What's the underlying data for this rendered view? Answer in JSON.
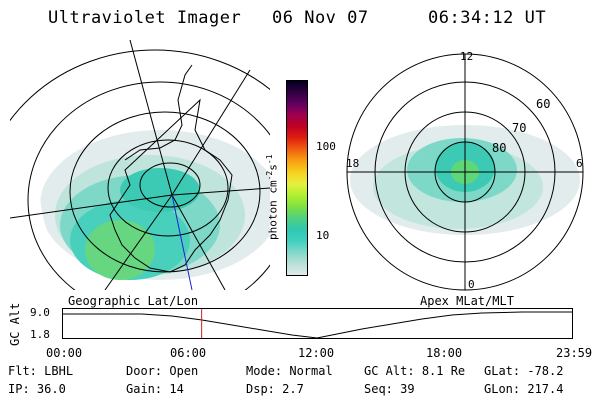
{
  "header": {
    "instrument": "Ultraviolet Imager",
    "date": "06 Nov 07",
    "time": "06:34:12 UT"
  },
  "left_panel": {
    "label": "Geographic Lat/Lon"
  },
  "right_panel": {
    "label": "Apex MLat/MLT",
    "mlt_labels": [
      "12",
      "18",
      "6",
      "0"
    ],
    "mlat_labels": [
      "60",
      "70",
      "80"
    ]
  },
  "colorbar": {
    "title": "photon cm",
    "title_sup1": "-2",
    "title_s": "s",
    "title_sup2": "-1",
    "tick_labels": [
      "100",
      "10"
    ],
    "colors": [
      "#e0eaea",
      "#b8e0d8",
      "#80d8c8",
      "#40d0c0",
      "#30c8b0",
      "#50d080",
      "#80e040",
      "#b0f030",
      "#e8f040",
      "#f8d020",
      "#f8a010",
      "#f06010",
      "#e02010",
      "#c00020",
      "#a00050",
      "#600060",
      "#300040",
      "#000020"
    ]
  },
  "altitude_plot": {
    "axis_label": "GC Alt",
    "y_ticks": [
      "9.0",
      "1.8"
    ],
    "x_ticks": [
      "00:00",
      "06:00",
      "12:00",
      "18:00",
      "23:59"
    ],
    "current_time_fraction": 0.2738
  },
  "footer": {
    "row1": [
      {
        "label": "Flt:",
        "value": "LBHL"
      },
      {
        "label": "Door:",
        "value": "Open"
      },
      {
        "label": "Mode:",
        "value": "Normal"
      },
      {
        "label": "GC Alt:",
        "value": "8.1 Re"
      },
      {
        "label": "GLat:",
        "value": "-78.2"
      }
    ],
    "row2": [
      {
        "label": "IP:",
        "value": "36.0"
      },
      {
        "label": "Gain:",
        "value": "14"
      },
      {
        "label": "Dsp:",
        "value": "2.7"
      },
      {
        "label": "Seq:",
        "value": "39"
      },
      {
        "label": "GLon:",
        "value": "217.4"
      }
    ]
  }
}
